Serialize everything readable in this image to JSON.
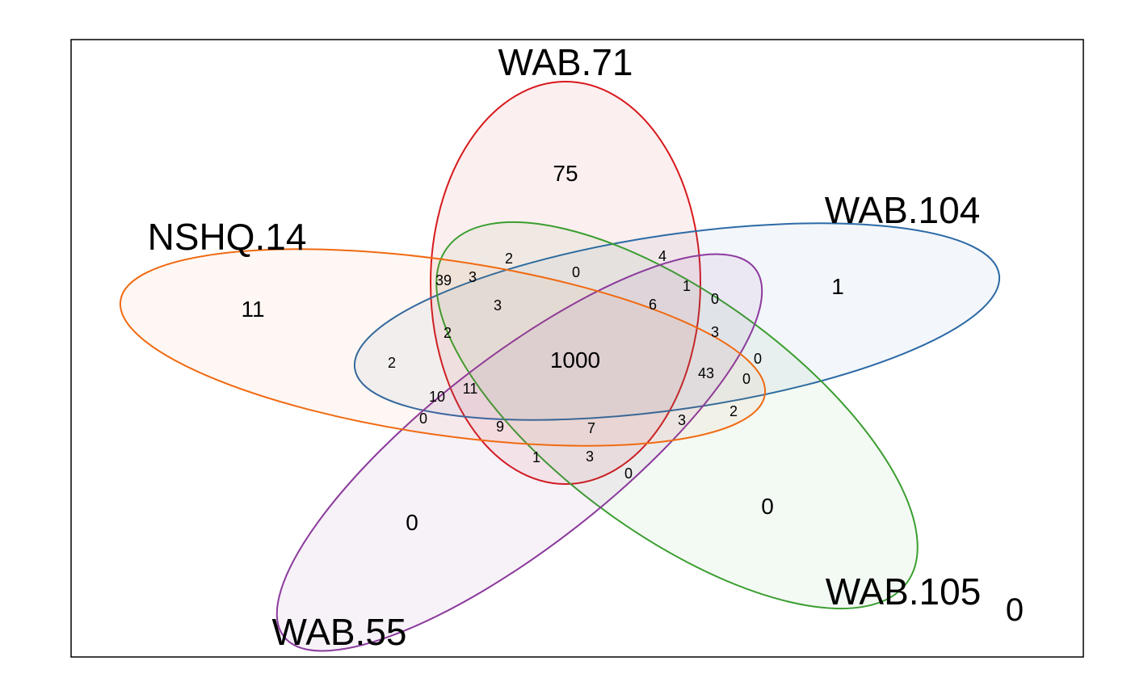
{
  "chart_data": {
    "type": "venn",
    "sets": [
      {
        "key": "wab71",
        "name": "WAB.71",
        "color": "#d7191c"
      },
      {
        "key": "wab104",
        "name": "WAB.104",
        "color": "#2c6aa6"
      },
      {
        "key": "wab105",
        "name": "WAB.105",
        "color": "#3a9e2f"
      },
      {
        "key": "wab55",
        "name": "WAB.55",
        "color": "#8b3a9c"
      },
      {
        "key": "nshq14",
        "name": "NSHQ.14",
        "color": "#f06a12"
      }
    ],
    "outside_count": "0",
    "counts": [
      "75",
      "1",
      "0",
      "0",
      "11",
      "1000",
      "2",
      "0",
      "4",
      "39",
      "3",
      "3",
      "1",
      "6",
      "0",
      "3",
      "2",
      "0",
      "43",
      "0",
      "2",
      "2",
      "10",
      "11",
      "3",
      "0",
      "9",
      "7",
      "1",
      "3",
      "0"
    ]
  }
}
